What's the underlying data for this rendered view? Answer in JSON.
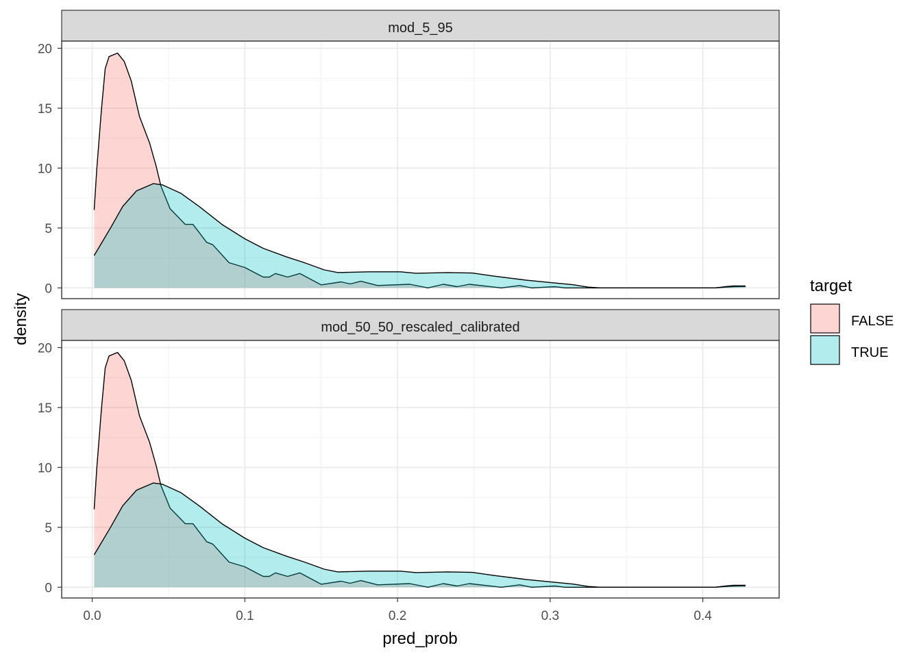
{
  "chart_data": {
    "type": "area",
    "subtype": "density, faceted",
    "xlabel": "pred_prob",
    "ylabel": "density",
    "xlim": [
      -0.02,
      0.45
    ],
    "ylim": [
      -0.9,
      20.6
    ],
    "x_ticks": [
      "0.0",
      "0.1",
      "0.2",
      "0.3",
      "0.4"
    ],
    "x_tick_values": [
      0,
      0.1,
      0.2,
      0.3,
      0.4
    ],
    "y_ticks": [
      "0",
      "5",
      "10",
      "15",
      "20"
    ],
    "y_tick_values": [
      0,
      5,
      10,
      15,
      20
    ],
    "grid": true,
    "legend": {
      "title": "target",
      "placement": "right",
      "entries": [
        {
          "label": "FALSE",
          "color": "#F8766D"
        },
        {
          "label": "TRUE",
          "color": "#00BFC4"
        }
      ]
    },
    "fill_alpha": 0.3,
    "facets": [
      {
        "strip": "mod_5_95",
        "series": [
          {
            "name": "FALSE",
            "x": [
              0.0013,
              0.003,
              0.006,
              0.0085,
              0.011,
              0.0166,
              0.021,
              0.0255,
              0.031,
              0.0376,
              0.042,
              0.045,
              0.051,
              0.061,
              0.066,
              0.075,
              0.079,
              0.0896,
              0.1,
              0.112,
              0.116,
              0.12,
              0.128,
              0.136,
              0.15,
              0.163,
              0.169,
              0.176,
              0.187,
              0.208,
              0.22,
              0.23,
              0.239,
              0.247,
              0.268,
              0.28,
              0.288,
              0.303,
              0.31,
              0.35,
              0.408,
              0.42,
              0.428
            ],
            "y": [
              6.5,
              9.9,
              14.8,
              18.3,
              19.3,
              19.6,
              18.9,
              17.3,
              14.3,
              12.1,
              10.1,
              8.5,
              6.6,
              5.3,
              5.3,
              3.8,
              3.6,
              2.1,
              1.7,
              0.9,
              0.9,
              1.2,
              0.9,
              1.2,
              0.25,
              0.5,
              0.33,
              0.55,
              0.2,
              0.3,
              0.0,
              0.3,
              0.1,
              0.3,
              0.0,
              0.2,
              0.0,
              0.1,
              0.0,
              0.0,
              0.0,
              0.1,
              0.12
            ]
          },
          {
            "name": "TRUE",
            "x": [
              0.0013,
              0.012,
              0.02,
              0.029,
              0.04,
              0.046,
              0.058,
              0.07,
              0.085,
              0.1,
              0.112,
              0.127,
              0.139,
              0.152,
              0.161,
              0.181,
              0.202,
              0.212,
              0.233,
              0.249,
              0.263,
              0.284,
              0.3,
              0.315,
              0.325,
              0.333,
              0.408,
              0.415,
              0.42,
              0.428
            ],
            "y": [
              2.7,
              5.0,
              6.8,
              8.1,
              8.7,
              8.6,
              7.9,
              6.8,
              5.3,
              4.1,
              3.3,
              2.6,
              2.1,
              1.5,
              1.28,
              1.34,
              1.34,
              1.22,
              1.28,
              1.24,
              0.98,
              0.65,
              0.45,
              0.26,
              0.06,
              0.0,
              0.0,
              0.1,
              0.16,
              0.16
            ]
          }
        ]
      },
      {
        "strip": "mod_50_50_rescaled_calibrated",
        "series": [
          {
            "name": "FALSE",
            "x": [
              0.0013,
              0.003,
              0.006,
              0.0085,
              0.011,
              0.0166,
              0.021,
              0.0255,
              0.031,
              0.0376,
              0.042,
              0.045,
              0.051,
              0.061,
              0.066,
              0.075,
              0.079,
              0.0896,
              0.1,
              0.112,
              0.116,
              0.12,
              0.128,
              0.136,
              0.15,
              0.163,
              0.169,
              0.176,
              0.187,
              0.208,
              0.22,
              0.23,
              0.239,
              0.247,
              0.268,
              0.28,
              0.288,
              0.303,
              0.31,
              0.35,
              0.408,
              0.42,
              0.428
            ],
            "y": [
              6.5,
              9.9,
              14.8,
              18.3,
              19.3,
              19.6,
              18.9,
              17.3,
              14.3,
              12.1,
              10.1,
              8.5,
              6.6,
              5.3,
              5.3,
              3.8,
              3.6,
              2.1,
              1.7,
              0.9,
              0.9,
              1.2,
              0.9,
              1.2,
              0.25,
              0.5,
              0.33,
              0.55,
              0.2,
              0.3,
              0.0,
              0.3,
              0.1,
              0.3,
              0.0,
              0.2,
              0.0,
              0.1,
              0.0,
              0.0,
              0.0,
              0.1,
              0.12
            ]
          },
          {
            "name": "TRUE",
            "x": [
              0.0013,
              0.012,
              0.02,
              0.029,
              0.04,
              0.046,
              0.058,
              0.07,
              0.085,
              0.1,
              0.112,
              0.127,
              0.139,
              0.152,
              0.161,
              0.181,
              0.202,
              0.212,
              0.233,
              0.249,
              0.263,
              0.284,
              0.3,
              0.315,
              0.325,
              0.333,
              0.408,
              0.415,
              0.42,
              0.428
            ],
            "y": [
              2.7,
              5.0,
              6.8,
              8.1,
              8.7,
              8.6,
              7.9,
              6.8,
              5.3,
              4.1,
              3.3,
              2.6,
              2.1,
              1.5,
              1.28,
              1.34,
              1.34,
              1.22,
              1.28,
              1.24,
              0.98,
              0.65,
              0.45,
              0.26,
              0.06,
              0.0,
              0.0,
              0.1,
              0.16,
              0.16
            ]
          }
        ]
      }
    ]
  }
}
